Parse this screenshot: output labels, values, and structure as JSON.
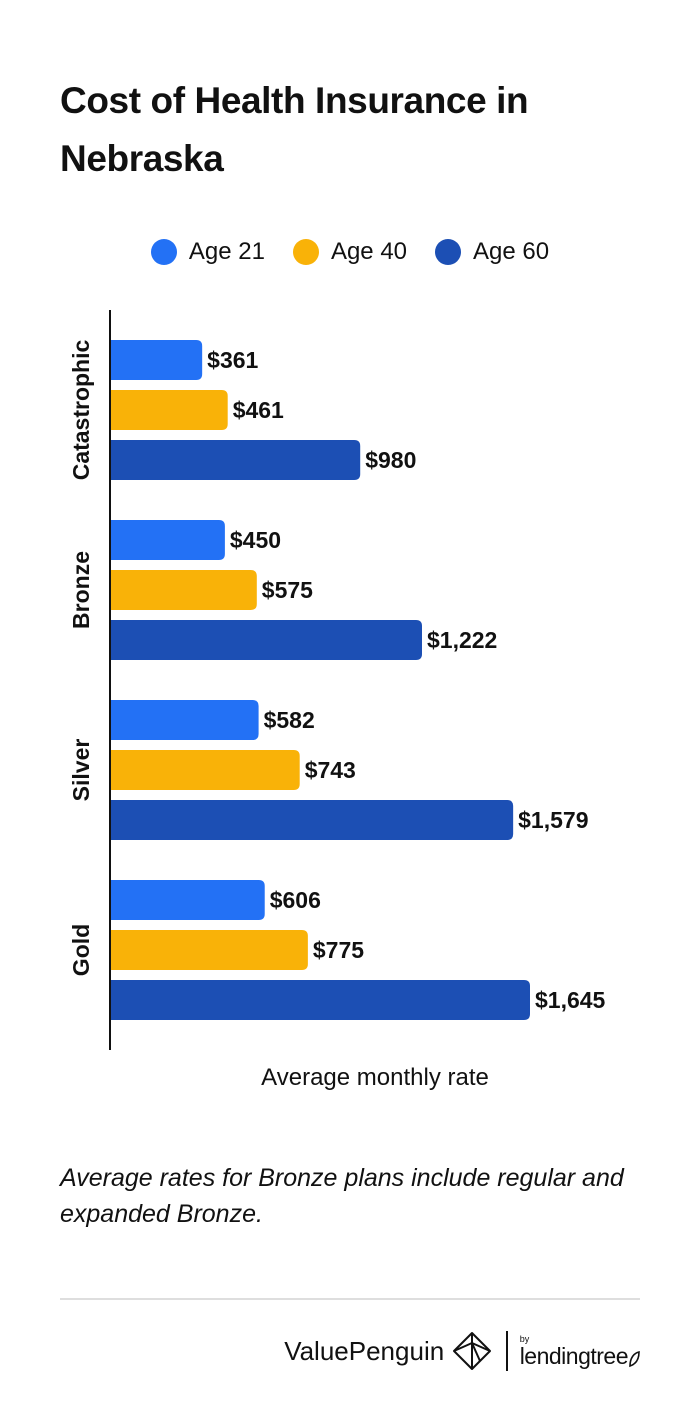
{
  "title": "Cost of Health Insurance in Nebraska",
  "note": "Average rates for Bronze plans include regular and expanded Bronze.",
  "footer": {
    "brand": "ValuePenguin",
    "by": "by",
    "partner": "lendingtree"
  },
  "colors": {
    "age21": "#2371f5",
    "age40": "#f9b208",
    "age60": "#1c4fb4",
    "axis": "#111111",
    "divider": "#dedede"
  },
  "icons": {
    "brand_logo": "valuepenguin-diamond-icon",
    "partner_logo": "lendingtree-leaf-icon"
  },
  "chart_data": {
    "type": "bar",
    "orientation": "horizontal",
    "title": "Cost of Health Insurance in Nebraska",
    "xlabel": "Average monthly rate",
    "ylabel": "",
    "categories": [
      "Catastrophic",
      "Bronze",
      "Silver",
      "Gold"
    ],
    "series": [
      {
        "name": "Age 21",
        "values": [
          361,
          450,
          582,
          606
        ],
        "labels": [
          "$361",
          "$450",
          "$582",
          "$606"
        ],
        "color": "#2371f5"
      },
      {
        "name": "Age 40",
        "values": [
          461,
          575,
          743,
          775
        ],
        "labels": [
          "$461",
          "$575",
          "$743",
          "$775"
        ],
        "color": "#f9b208"
      },
      {
        "name": "Age 60",
        "values": [
          980,
          1222,
          1579,
          1645
        ],
        "labels": [
          "$980",
          "$1,222",
          "$1,579",
          "$1,645"
        ],
        "color": "#1c4fb4"
      }
    ],
    "xlim": [
      0,
      1645
    ],
    "legend": "top",
    "grid": false
  }
}
